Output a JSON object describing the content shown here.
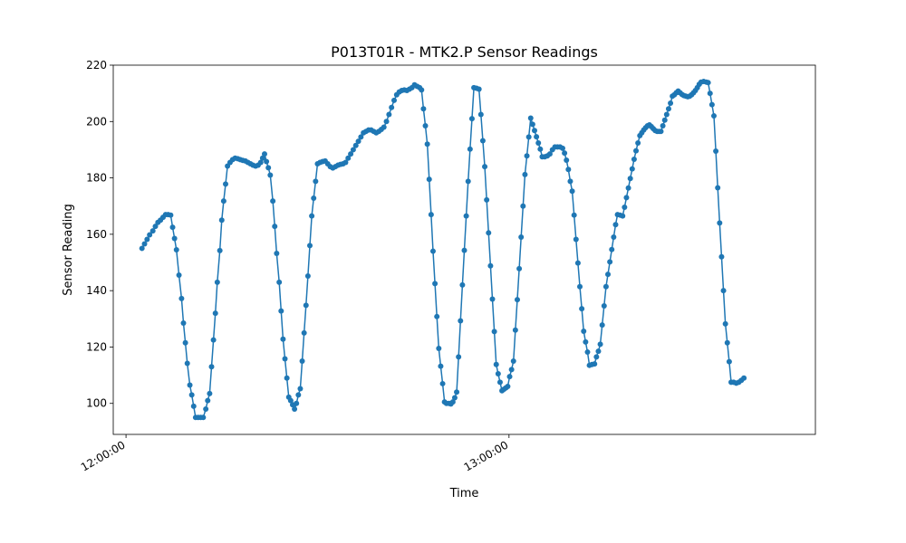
{
  "chart_data": {
    "type": "line",
    "title": "P013T01R - MTK2.P Sensor Readings",
    "xlabel": "Time",
    "ylabel": "Sensor Reading",
    "x_ticks": [
      "12:00:00",
      "13:00:00"
    ],
    "x_tick_minutes": [
      0,
      60
    ],
    "y_ticks": [
      100,
      120,
      140,
      160,
      180,
      200,
      220
    ],
    "xlim_minutes": [
      -2,
      108
    ],
    "ylim": [
      89,
      220
    ],
    "grid": false,
    "legend": "none",
    "series": [
      {
        "color": "#1f77b4",
        "marker": "circle",
        "points": [
          [
            2.5,
            155
          ],
          [
            2.9,
            156.6
          ],
          [
            3.3,
            158.2
          ],
          [
            3.7,
            159.8
          ],
          [
            4.2,
            161.2
          ],
          [
            4.6,
            162.8
          ],
          [
            5.0,
            164.2
          ],
          [
            5.4,
            165
          ],
          [
            5.8,
            166
          ],
          [
            6.2,
            167
          ],
          [
            6.6,
            167
          ],
          [
            7.0,
            166.8
          ],
          [
            7.3,
            162.5
          ],
          [
            7.6,
            158.5
          ],
          [
            7.9,
            154.5
          ],
          [
            8.3,
            145.5
          ],
          [
            8.7,
            137.2
          ],
          [
            9.0,
            128.5
          ],
          [
            9.3,
            121.5
          ],
          [
            9.6,
            114.2
          ],
          [
            10.0,
            106.5
          ],
          [
            10.3,
            103
          ],
          [
            10.6,
            99
          ],
          [
            10.9,
            95
          ],
          [
            11.3,
            95
          ],
          [
            11.7,
            95
          ],
          [
            12.1,
            95
          ],
          [
            12.5,
            98
          ],
          [
            12.8,
            101
          ],
          [
            13.1,
            103.5
          ],
          [
            13.4,
            113
          ],
          [
            13.7,
            122.5
          ],
          [
            14.0,
            132
          ],
          [
            14.3,
            143
          ],
          [
            14.7,
            154.2
          ],
          [
            15.0,
            165
          ],
          [
            15.3,
            171.8
          ],
          [
            15.6,
            177.8
          ],
          [
            15.9,
            184.2
          ],
          [
            16.3,
            185.5
          ],
          [
            16.7,
            186.5
          ],
          [
            17.1,
            187
          ],
          [
            17.5,
            186.8
          ],
          [
            17.9,
            186.5
          ],
          [
            18.3,
            186.2
          ],
          [
            18.7,
            186
          ],
          [
            19.1,
            185.5
          ],
          [
            19.5,
            185
          ],
          [
            19.9,
            184.5
          ],
          [
            20.3,
            184.2
          ],
          [
            20.7,
            184.5
          ],
          [
            21.1,
            185.5
          ],
          [
            21.4,
            187
          ],
          [
            21.7,
            188.5
          ],
          [
            22.0,
            185.8
          ],
          [
            22.3,
            183.6
          ],
          [
            22.6,
            181
          ],
          [
            23.0,
            171.8
          ],
          [
            23.3,
            162.8
          ],
          [
            23.6,
            153.2
          ],
          [
            24.0,
            143
          ],
          [
            24.3,
            132.8
          ],
          [
            24.6,
            122.8
          ],
          [
            24.9,
            115.8
          ],
          [
            25.2,
            109
          ],
          [
            25.5,
            102.2
          ],
          [
            25.8,
            101
          ],
          [
            26.1,
            99.5
          ],
          [
            26.4,
            98
          ],
          [
            26.7,
            100
          ],
          [
            27.0,
            103
          ],
          [
            27.3,
            105.2
          ],
          [
            27.6,
            115
          ],
          [
            27.9,
            125
          ],
          [
            28.2,
            134.8
          ],
          [
            28.5,
            145.2
          ],
          [
            28.8,
            156
          ],
          [
            29.1,
            166.5
          ],
          [
            29.4,
            172.8
          ],
          [
            29.7,
            178.8
          ],
          [
            30.0,
            185
          ],
          [
            30.4,
            185.5
          ],
          [
            30.8,
            185.8
          ],
          [
            31.2,
            186
          ],
          [
            31.6,
            185
          ],
          [
            32.0,
            184
          ],
          [
            32.4,
            183.5
          ],
          [
            32.8,
            184
          ],
          [
            33.2,
            184.5
          ],
          [
            33.6,
            184.8
          ],
          [
            34.0,
            185
          ],
          [
            34.4,
            185.5
          ],
          [
            34.8,
            187
          ],
          [
            35.2,
            188.5
          ],
          [
            35.6,
            190
          ],
          [
            36.0,
            191.5
          ],
          [
            36.4,
            193
          ],
          [
            36.8,
            194.5
          ],
          [
            37.2,
            196
          ],
          [
            37.6,
            196.5
          ],
          [
            38.0,
            197
          ],
          [
            38.4,
            197
          ],
          [
            38.8,
            196.5
          ],
          [
            39.2,
            196
          ],
          [
            39.6,
            196.5
          ],
          [
            40.0,
            197.2
          ],
          [
            40.4,
            198
          ],
          [
            40.8,
            200
          ],
          [
            41.2,
            202.5
          ],
          [
            41.6,
            205
          ],
          [
            42.0,
            207.5
          ],
          [
            42.4,
            209.5
          ],
          [
            42.8,
            210.5
          ],
          [
            43.2,
            211
          ],
          [
            43.6,
            211.2
          ],
          [
            44.0,
            211
          ],
          [
            44.4,
            211.5
          ],
          [
            44.8,
            212
          ],
          [
            45.2,
            213
          ],
          [
            45.6,
            212.5
          ],
          [
            46.0,
            212
          ],
          [
            46.3,
            211.2
          ],
          [
            46.6,
            204.5
          ],
          [
            46.9,
            198.5
          ],
          [
            47.2,
            192
          ],
          [
            47.5,
            179.5
          ],
          [
            47.8,
            167
          ],
          [
            48.1,
            154
          ],
          [
            48.4,
            142.5
          ],
          [
            48.7,
            130.8
          ],
          [
            49.0,
            119.5
          ],
          [
            49.3,
            113.2
          ],
          [
            49.6,
            107
          ],
          [
            49.9,
            100.5
          ],
          [
            50.2,
            100
          ],
          [
            50.6,
            100
          ],
          [
            50.9,
            99.8
          ],
          [
            51.2,
            100.5
          ],
          [
            51.5,
            102
          ],
          [
            51.8,
            104
          ],
          [
            52.1,
            116.5
          ],
          [
            52.4,
            129.3
          ],
          [
            52.7,
            142
          ],
          [
            53.0,
            154.3
          ],
          [
            53.3,
            166.5
          ],
          [
            53.6,
            178.8
          ],
          [
            53.9,
            190.2
          ],
          [
            54.2,
            201
          ],
          [
            54.5,
            212
          ],
          [
            54.9,
            211.8
          ],
          [
            55.3,
            211.5
          ],
          [
            55.6,
            202.5
          ],
          [
            55.9,
            193.2
          ],
          [
            56.2,
            184
          ],
          [
            56.5,
            172.2
          ],
          [
            56.8,
            160.5
          ],
          [
            57.1,
            148.8
          ],
          [
            57.4,
            137
          ],
          [
            57.7,
            125.5
          ],
          [
            58.0,
            113.8
          ],
          [
            58.3,
            110.5
          ],
          [
            58.6,
            107.5
          ],
          [
            58.9,
            104.5
          ],
          [
            59.2,
            105
          ],
          [
            59.5,
            105.5
          ],
          [
            59.8,
            106
          ],
          [
            60.1,
            109.5
          ],
          [
            60.4,
            112
          ],
          [
            60.7,
            115
          ],
          [
            61.0,
            126
          ],
          [
            61.3,
            136.8
          ],
          [
            61.6,
            147.8
          ],
          [
            61.9,
            159
          ],
          [
            62.2,
            170
          ],
          [
            62.5,
            181.2
          ],
          [
            62.8,
            187.8
          ],
          [
            63.1,
            194.5
          ],
          [
            63.4,
            201.2
          ],
          [
            63.7,
            199
          ],
          [
            64.0,
            196.8
          ],
          [
            64.3,
            194.6
          ],
          [
            64.6,
            192.4
          ],
          [
            64.9,
            190.2
          ],
          [
            65.2,
            187.5
          ],
          [
            65.6,
            187.5
          ],
          [
            66.0,
            187.8
          ],
          [
            66.4,
            188.5
          ],
          [
            66.8,
            190
          ],
          [
            67.2,
            191
          ],
          [
            67.6,
            191
          ],
          [
            68.0,
            191
          ],
          [
            68.4,
            190.5
          ],
          [
            68.7,
            188.8
          ],
          [
            69.0,
            186.3
          ],
          [
            69.3,
            183
          ],
          [
            69.6,
            178.8
          ],
          [
            69.9,
            175.3
          ],
          [
            70.2,
            166.8
          ],
          [
            70.5,
            158.2
          ],
          [
            70.8,
            149.8
          ],
          [
            71.1,
            141.4
          ],
          [
            71.4,
            133.6
          ],
          [
            71.7,
            125.6
          ],
          [
            72.0,
            121.8
          ],
          [
            72.3,
            118.2
          ],
          [
            72.6,
            113.5
          ],
          [
            73.0,
            113.8
          ],
          [
            73.4,
            114
          ],
          [
            73.7,
            116.5
          ],
          [
            74.0,
            118.5
          ],
          [
            74.3,
            121
          ],
          [
            74.6,
            127.8
          ],
          [
            74.9,
            134.6
          ],
          [
            75.2,
            141.4
          ],
          [
            75.5,
            145.8
          ],
          [
            75.8,
            150.2
          ],
          [
            76.1,
            154.6
          ],
          [
            76.4,
            159
          ],
          [
            76.7,
            163.4
          ],
          [
            77.0,
            167
          ],
          [
            77.4,
            166.8
          ],
          [
            77.8,
            166.5
          ],
          [
            78.1,
            169.6
          ],
          [
            78.4,
            173
          ],
          [
            78.7,
            176.4
          ],
          [
            79.0,
            179.8
          ],
          [
            79.3,
            183.2
          ],
          [
            79.6,
            186.6
          ],
          [
            79.9,
            189.6
          ],
          [
            80.2,
            192.4
          ],
          [
            80.5,
            195
          ],
          [
            80.8,
            196
          ],
          [
            81.1,
            197
          ],
          [
            81.4,
            197.8
          ],
          [
            81.7,
            198.5
          ],
          [
            82.0,
            198.8
          ],
          [
            82.3,
            198.2
          ],
          [
            82.6,
            197.5
          ],
          [
            82.9,
            196.8
          ],
          [
            83.2,
            196.5
          ],
          [
            83.5,
            196.5
          ],
          [
            83.8,
            196.5
          ],
          [
            84.1,
            198.5
          ],
          [
            84.4,
            200.5
          ],
          [
            84.7,
            202.5
          ],
          [
            85.0,
            204.5
          ],
          [
            85.3,
            206.5
          ],
          [
            85.6,
            209
          ],
          [
            85.9,
            209.5
          ],
          [
            86.2,
            210.2
          ],
          [
            86.5,
            210.8
          ],
          [
            86.8,
            210.2
          ],
          [
            87.1,
            209.6
          ],
          [
            87.4,
            209.2
          ],
          [
            87.7,
            209
          ],
          [
            88.0,
            208.8
          ],
          [
            88.3,
            209
          ],
          [
            88.6,
            209.5
          ],
          [
            88.9,
            210.2
          ],
          [
            89.2,
            211
          ],
          [
            89.5,
            212
          ],
          [
            89.8,
            213.2
          ],
          [
            90.1,
            214
          ],
          [
            90.5,
            214.2
          ],
          [
            90.9,
            214
          ],
          [
            91.2,
            213.8
          ],
          [
            91.5,
            210
          ],
          [
            91.8,
            206
          ],
          [
            92.1,
            202
          ],
          [
            92.4,
            189.5
          ],
          [
            92.7,
            176.5
          ],
          [
            93.0,
            164
          ],
          [
            93.3,
            152
          ],
          [
            93.6,
            140
          ],
          [
            93.9,
            128.2
          ],
          [
            94.2,
            121.5
          ],
          [
            94.5,
            114.8
          ],
          [
            94.8,
            107.5
          ],
          [
            95.2,
            107.5
          ],
          [
            95.6,
            107.2
          ],
          [
            96.0,
            107.5
          ],
          [
            96.4,
            108.2
          ],
          [
            96.8,
            109
          ]
        ]
      }
    ]
  }
}
